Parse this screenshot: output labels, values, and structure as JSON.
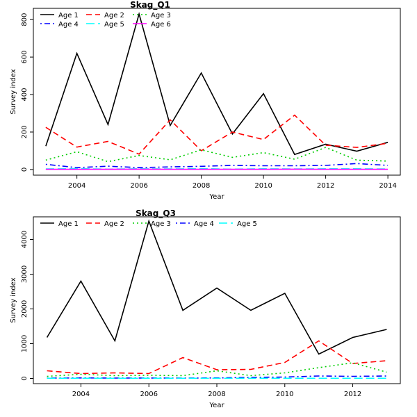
{
  "chart_data": [
    {
      "type": "line",
      "title": "Skag_Q1",
      "xlabel": "Year",
      "ylabel": "Survey index",
      "x": [
        2003,
        2004,
        2005,
        2006,
        2007,
        2008,
        2009,
        2010,
        2011,
        2012,
        2013,
        2014
      ],
      "xlim": [
        2002.6,
        2014.4
      ],
      "ylim": [
        -30,
        860
      ],
      "xticks": [
        2004,
        2006,
        2008,
        2010,
        2012,
        2014
      ],
      "yticks": [
        0,
        200,
        400,
        600,
        800
      ],
      "legend_position": "top-left",
      "series": [
        {
          "name": "Age 1",
          "color": "#000000",
          "dash": "solid",
          "values": [
            125,
            620,
            240,
            830,
            235,
            515,
            190,
            405,
            80,
            135,
            98,
            145
          ]
        },
        {
          "name": "Age 2",
          "color": "#ff0000",
          "dash": "dashed",
          "values": [
            225,
            120,
            150,
            82,
            265,
            100,
            200,
            160,
            290,
            130,
            118,
            140
          ]
        },
        {
          "name": "Age 3",
          "color": "#00cd00",
          "dash": "dotted",
          "values": [
            50,
            95,
            42,
            75,
            52,
            105,
            65,
            90,
            55,
            118,
            50,
            45
          ]
        },
        {
          "name": "Age 4",
          "color": "#0000ff",
          "dash": "dotdash",
          "values": [
            28,
            10,
            18,
            10,
            14,
            17,
            22,
            20,
            20,
            22,
            32,
            22
          ]
        },
        {
          "name": "Age 5",
          "color": "#00ffff",
          "dash": "longdash",
          "values": [
            3,
            5,
            2,
            4,
            3,
            5,
            2,
            4,
            3,
            4,
            4,
            3
          ]
        },
        {
          "name": "Age 6",
          "color": "#ff00ff",
          "dash": "solid",
          "values": [
            1,
            1,
            1,
            2,
            1,
            1,
            1,
            1,
            2,
            1,
            1,
            1
          ]
        }
      ]
    },
    {
      "type": "line",
      "title": "Skag_Q3",
      "xlabel": "Year",
      "ylabel": "Survey index",
      "x": [
        2003,
        2004,
        2005,
        2006,
        2007,
        2008,
        2009,
        2010,
        2011,
        2012,
        2013
      ],
      "xlim": [
        2002.6,
        2013.4
      ],
      "ylim": [
        -150,
        4650
      ],
      "xticks": [
        2004,
        2006,
        2008,
        2010,
        2012
      ],
      "yticks": [
        0,
        1000,
        2000,
        3000,
        4000
      ],
      "legend_position": "top-left",
      "series": [
        {
          "name": "Age 1",
          "color": "#000000",
          "dash": "solid",
          "values": [
            1180,
            2800,
            1080,
            4530,
            1960,
            2600,
            1960,
            2450,
            700,
            1180,
            1410
          ]
        },
        {
          "name": "Age 2",
          "color": "#ff0000",
          "dash": "dashed",
          "values": [
            220,
            140,
            160,
            140,
            600,
            250,
            260,
            460,
            1080,
            430,
            510
          ]
        },
        {
          "name": "Age 3",
          "color": "#00cd00",
          "dash": "dotted",
          "values": [
            60,
            120,
            80,
            90,
            80,
            220,
            80,
            160,
            310,
            450,
            180
          ]
        },
        {
          "name": "Age 4",
          "color": "#0000ff",
          "dash": "dotdash",
          "values": [
            10,
            15,
            10,
            12,
            10,
            15,
            30,
            40,
            70,
            60,
            70
          ]
        },
        {
          "name": "Age 5",
          "color": "#00ffff",
          "dash": "longdash",
          "values": [
            5,
            5,
            5,
            5,
            5,
            5,
            5,
            5,
            5,
            5,
            5
          ]
        }
      ]
    }
  ]
}
